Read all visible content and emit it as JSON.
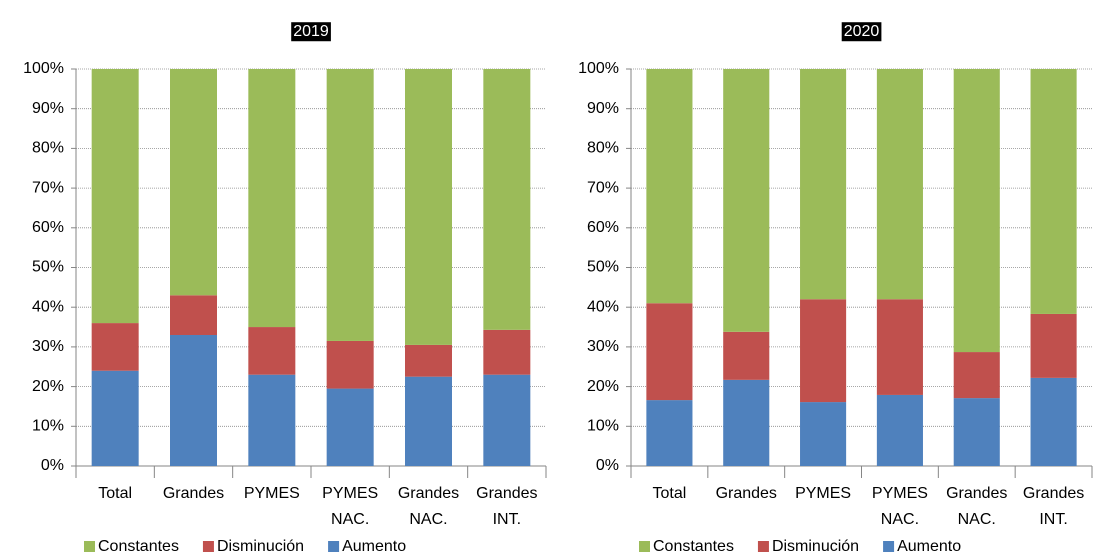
{
  "chart_data": [
    {
      "type": "stacked_bar",
      "title": "2019",
      "categories": [
        "Total",
        "Grandes",
        "PYMES",
        "PYMES NAC.",
        "Grandes NAC.",
        "Grandes INT."
      ],
      "series": [
        {
          "name": "Constantes",
          "color": "#9bbb59",
          "values": [
            64,
            57,
            65,
            68.5,
            69.5,
            65.7
          ]
        },
        {
          "name": "Disminución",
          "color": "#c0504d",
          "values": [
            12,
            10,
            12,
            12,
            8,
            11.3
          ]
        },
        {
          "name": "Aumento",
          "color": "#4f81bd",
          "values": [
            24,
            33,
            23,
            19.5,
            22.5,
            23
          ]
        }
      ],
      "ylim": [
        0,
        100
      ],
      "yticks": [
        {
          "value": 0,
          "label": "0%"
        },
        {
          "value": 10,
          "label": "10%"
        },
        {
          "value": 20,
          "label": "20%"
        },
        {
          "value": 30,
          "label": "30%"
        },
        {
          "value": 40,
          "label": "40%"
        },
        {
          "value": 50,
          "label": "50%"
        },
        {
          "value": 60,
          "label": "60%"
        },
        {
          "value": 70,
          "label": "70%"
        },
        {
          "value": 80,
          "label": "80%"
        },
        {
          "value": 90,
          "label": "90%"
        },
        {
          "value": 100,
          "label": "100%"
        }
      ],
      "grid": true,
      "legend": "bottom"
    },
    {
      "type": "stacked_bar",
      "title": "2020",
      "categories": [
        "Total",
        "Grandes",
        "PYMES",
        "PYMES NAC.",
        "Grandes NAC.",
        "Grandes INT."
      ],
      "series": [
        {
          "name": "Constantes",
          "color": "#9bbb59",
          "values": [
            59,
            66.2,
            58,
            58,
            71.3,
            61.7
          ]
        },
        {
          "name": "Disminución",
          "color": "#c0504d",
          "values": [
            24.4,
            12.1,
            25.9,
            24.1,
            11.6,
            16.1
          ]
        },
        {
          "name": "Aumento",
          "color": "#4f81bd",
          "values": [
            16.6,
            21.7,
            16.1,
            17.9,
            17.1,
            22.2
          ]
        }
      ],
      "ylim": [
        0,
        100
      ],
      "yticks": [
        {
          "value": 0,
          "label": "0%"
        },
        {
          "value": 10,
          "label": "10%"
        },
        {
          "value": 20,
          "label": "20%"
        },
        {
          "value": 30,
          "label": "30%"
        },
        {
          "value": 40,
          "label": "40%"
        },
        {
          "value": 50,
          "label": "50%"
        },
        {
          "value": 60,
          "label": "60%"
        },
        {
          "value": 70,
          "label": "70%"
        },
        {
          "value": 80,
          "label": "80%"
        },
        {
          "value": 90,
          "label": "90%"
        },
        {
          "value": 100,
          "label": "100%"
        }
      ],
      "grid": true,
      "legend": "bottom"
    }
  ]
}
